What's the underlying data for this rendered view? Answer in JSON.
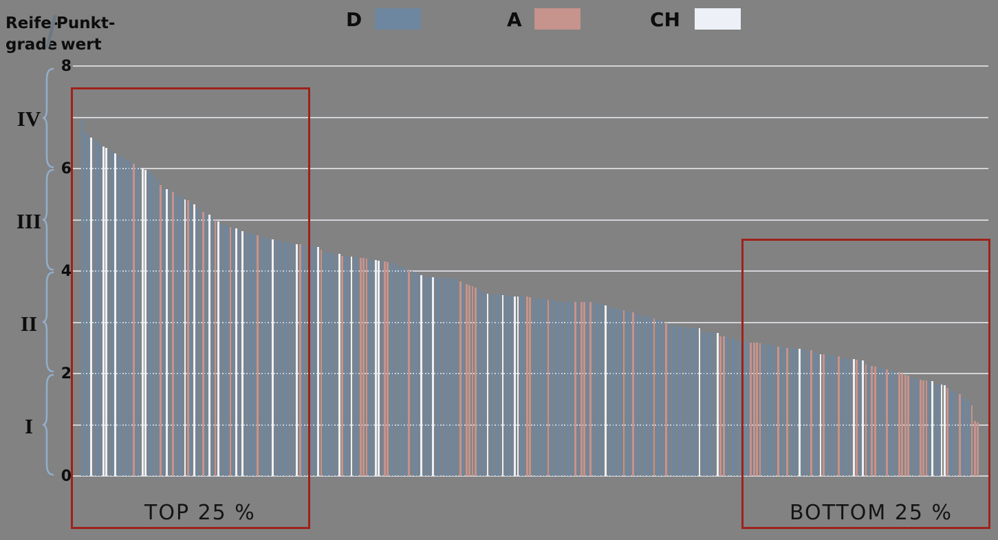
{
  "header": {
    "left_label_line1": "Reife-",
    "left_label_line2": "grade",
    "separator": "/",
    "right_label_line1": "Punkt-",
    "right_label_line2": "wert"
  },
  "legend": {
    "items": [
      {
        "label": "D",
        "color": "#6E87A0"
      },
      {
        "label": "A",
        "color": "#C6938D"
      },
      {
        "label": "CH",
        "color": "#EDF1F7"
      }
    ]
  },
  "axis": {
    "ticks": [
      "8",
      "6",
      "4",
      "2",
      "0"
    ],
    "roman_labels": [
      "IV",
      "III",
      "II",
      "I"
    ]
  },
  "annotations": {
    "top_box_label": "TOP 25 %",
    "bottom_box_label": "BOTTOM 25 %",
    "box_color": "#9E211B"
  },
  "colors": {
    "background": "#828282",
    "bar_D": "#6E87A0",
    "bar_A": "#C6938D",
    "bar_CH": "#EDF1F7",
    "gridline": "#E0E3E7",
    "brace": "#91AECB",
    "text": "#0D0D0D"
  },
  "chart_data": {
    "type": "bar",
    "title": "",
    "ylabel": "Reifegrade / Punktwert",
    "ylim": [
      0,
      8
    ],
    "gridlines_at": [
      0,
      1,
      2,
      3,
      4,
      5,
      6,
      7,
      8
    ],
    "tick_labels_at": [
      0,
      2,
      4,
      6,
      8
    ],
    "legend_entries": [
      "D",
      "A",
      "CH"
    ],
    "maturity_bands": {
      "IV": [
        6,
        8
      ],
      "III": [
        4,
        6
      ],
      "II": [
        2,
        4
      ],
      "I": [
        0,
        2
      ]
    },
    "bar_count": 297,
    "note": "each bar entry is value|country, sorted descending; country D/A/C where C = CH",
    "bars": [
      "6.95|D",
      "6.72|D",
      "6.66|D",
      "6.60|C",
      "6.56|D",
      "6.52|D",
      "6.47|D",
      "6.43|C",
      "6.40|C",
      "6.36|D",
      "6.33|D",
      "6.30|C",
      "6.26|D",
      "6.23|D",
      "6.20|D",
      "6.16|D",
      "6.13|D",
      "6.10|A",
      "6.05|D",
      "6.02|D",
      "6.00|C",
      "5.98|C",
      "5.95|D",
      "5.90|D",
      "5.85|D",
      "5.78|D",
      "5.68|A",
      "5.63|D",
      "5.60|C",
      "5.58|D",
      "5.55|A",
      "5.50|D",
      "5.47|D",
      "5.43|D",
      "5.40|C",
      "5.38|A",
      "5.34|D",
      "5.30|C",
      "5.25|D",
      "5.20|D",
      "5.15|A",
      "5.12|D",
      "5.10|C",
      "5.05|D",
      "5.00|A",
      "4.97|C",
      "4.93|D",
      "4.90|D",
      "4.88|D",
      "4.86|A",
      "4.85|D",
      "4.83|C",
      "4.80|D",
      "4.78|C",
      "4.77|D",
      "4.75|D",
      "4.73|D",
      "4.72|D",
      "4.70|A",
      "4.68|D",
      "4.67|D",
      "4.65|D",
      "4.63|D",
      "4.62|C",
      "4.60|D",
      "4.60|D",
      "4.58|D",
      "4.57|D",
      "4.56|D",
      "4.55|D",
      "4.54|D",
      "4.53|C",
      "4.52|A",
      "4.51|D",
      "4.50|D",
      "4.50|D",
      "4.49|D",
      "4.48|D",
      "4.47|C",
      "4.41|A",
      "4.38|D",
      "4.37|D",
      "4.36|D",
      "4.35|D",
      "4.34|D",
      "4.33|C",
      "4.30|A",
      "4.29|D",
      "4.28|D",
      "4.28|C",
      "4.27|D",
      "4.26|D",
      "4.26|A",
      "4.25|A",
      "4.24|A",
      "4.23|D",
      "4.22|D",
      "4.21|C",
      "4.20|C",
      "4.20|D",
      "4.19|A",
      "4.18|A",
      "4.17|D",
      "4.15|D",
      "4.12|D",
      "4.10|D",
      "4.08|D",
      "4.05|D",
      "4.03|A",
      "4.00|D",
      "3.97|D",
      "3.95|D",
      "3.92|C",
      "3.90|D",
      "3.89|D",
      "3.89|D",
      "3.88|C",
      "3.88|D",
      "3.87|D",
      "3.87|D",
      "3.86|D",
      "3.86|D",
      "3.85|D",
      "3.85|D",
      "3.84|D",
      "3.80|A",
      "3.76|D",
      "3.74|A",
      "3.72|A",
      "3.70|A",
      "3.68|A",
      "3.65|D",
      "3.60|D",
      "3.57|D",
      "3.56|C",
      "3.55|D",
      "3.55|D",
      "3.54|D",
      "3.54|D",
      "3.53|C",
      "3.53|D",
      "3.52|D",
      "3.52|D",
      "3.51|C",
      "3.51|C",
      "3.50|D",
      "3.50|D",
      "3.50|A",
      "3.49|A",
      "3.48|D",
      "3.47|D",
      "3.46|D",
      "3.45|D",
      "3.45|D",
      "3.44|A",
      "3.43|D",
      "3.42|D",
      "3.41|D",
      "3.40|D",
      "3.40|D",
      "3.40|D",
      "3.40|D",
      "3.40|D",
      "3.40|A",
      "3.40|D",
      "3.40|A",
      "3.39|A",
      "3.39|D",
      "3.39|A",
      "3.38|D",
      "3.37|D",
      "3.36|D",
      "3.36|D",
      "3.33|C",
      "3.30|D",
      "3.28|D",
      "3.27|D",
      "3.26|D",
      "3.25|D",
      "3.24|A",
      "3.22|D",
      "3.21|D",
      "3.20|A",
      "3.18|D",
      "3.16|D",
      "3.14|D",
      "3.12|D",
      "3.11|D",
      "3.10|D",
      "3.08|A",
      "3.06|D",
      "3.04|D",
      "3.02|D",
      "3.00|A",
      "2.97|D",
      "2.95|D",
      "2.93|D",
      "2.92|D",
      "2.91|D",
      "2.90|D",
      "2.90|D",
      "2.89|D",
      "2.89|D",
      "2.88|D",
      "2.88|C",
      "2.82|D",
      "2.81|D",
      "2.80|D",
      "2.80|D",
      "2.80|D",
      "2.79|C",
      "2.73|A",
      "2.72|A",
      "2.71|D",
      "2.70|D",
      "2.70|D",
      "2.65|D",
      "2.63|D",
      "2.63|D",
      "2.62|D",
      "2.62|D",
      "2.61|A",
      "2.60|A",
      "2.60|A",
      "2.59|A",
      "2.58|D",
      "2.57|D",
      "2.56|D",
      "2.55|D",
      "2.54|D",
      "2.53|A",
      "2.52|D",
      "2.51|D",
      "2.50|A",
      "2.50|D",
      "2.49|D",
      "2.48|D",
      "2.48|C",
      "2.47|D",
      "2.46|D",
      "2.46|D",
      "2.45|A",
      "2.40|D",
      "2.39|D",
      "2.38|C",
      "2.37|A",
      "2.36|D",
      "2.36|D",
      "2.35|D",
      "2.35|D",
      "2.34|A",
      "2.30|D",
      "2.30|D",
      "2.29|D",
      "2.28|D",
      "2.28|C",
      "2.27|A",
      "2.26|D",
      "2.25|C",
      "2.18|A",
      "2.16|D",
      "2.15|A",
      "2.14|A",
      "2.12|D",
      "2.11|D",
      "2.10|D",
      "2.08|A",
      "2.06|D",
      "2.05|D",
      "2.04|D",
      "2.03|A",
      "2.00|A",
      "1.98|A",
      "1.96|A",
      "1.92|D",
      "1.90|D",
      "1.89|D",
      "1.88|A",
      "1.87|A",
      "1.86|A",
      "1.85|D",
      "1.85|C",
      "1.80|D",
      "1.79|D",
      "1.78|C",
      "1.77|C",
      "1.72|A",
      "1.68|D",
      "1.65|D",
      "1.62|D",
      "1.60|A",
      "1.55|D",
      "1.50|D",
      "1.45|D",
      "1.38|A",
      "1.07|A",
      "1.05|A"
    ]
  }
}
